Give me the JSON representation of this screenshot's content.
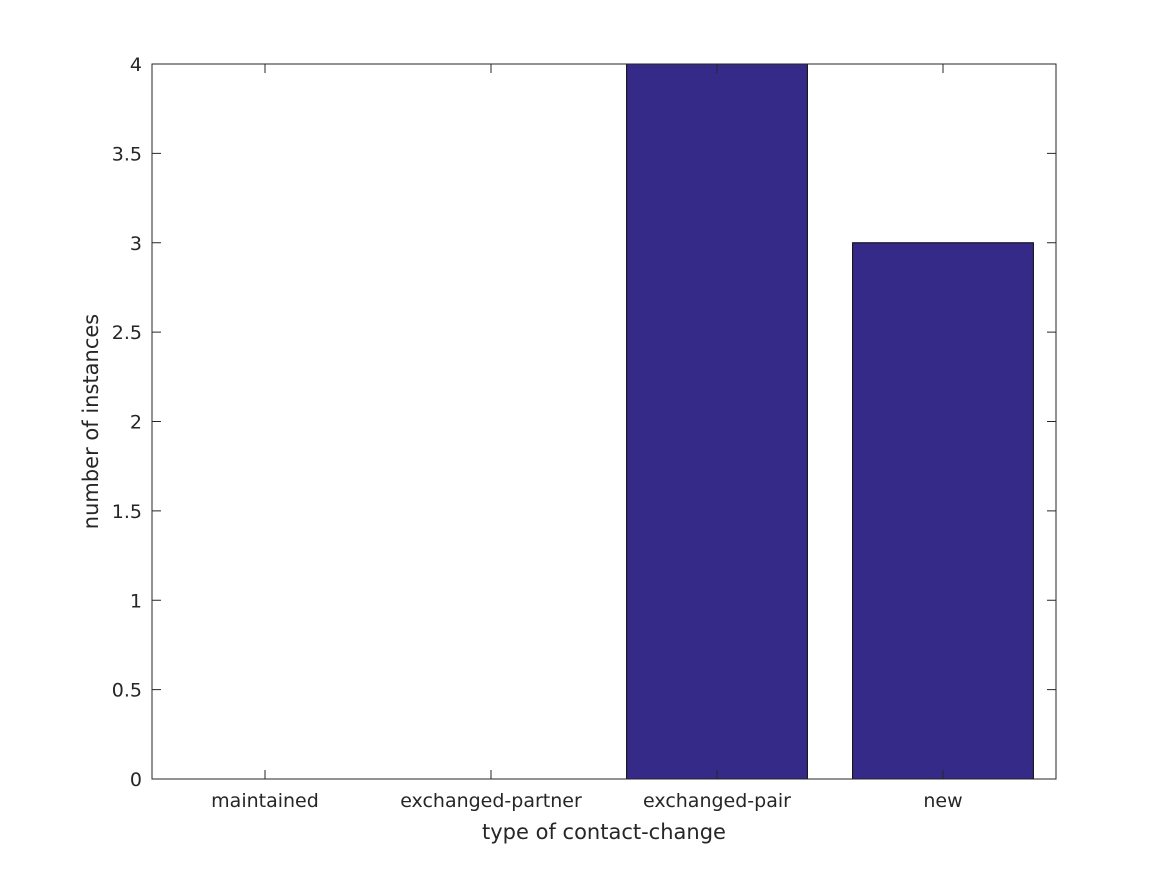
{
  "chart_data": {
    "type": "bar",
    "categories": [
      "maintained",
      "exchanged-partner",
      "exchanged-pair",
      "new"
    ],
    "values": [
      0,
      0,
      4,
      3
    ],
    "title": "",
    "xlabel": "type of contact-change",
    "ylabel": "number of instances",
    "ylim": [
      0,
      4
    ],
    "yticks": [
      0,
      0.5,
      1,
      1.5,
      2,
      2.5,
      3,
      3.5,
      4
    ],
    "ytick_labels": [
      "0",
      "0.5",
      "1",
      "1.5",
      "2",
      "2.5",
      "3",
      "3.5",
      "4"
    ],
    "grid": false,
    "legend": "none",
    "bar_color": "#352a87"
  }
}
